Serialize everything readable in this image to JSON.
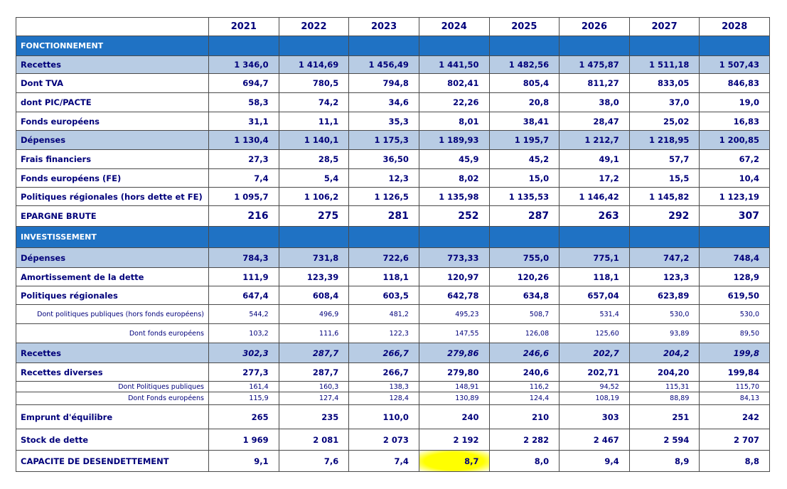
{
  "table": {
    "header": [
      "2021",
      "2022",
      "2023",
      "2024",
      "2025",
      "2026",
      "2027",
      "2028"
    ],
    "rows": [
      {
        "label": "FONCTIONNEMENT"
      },
      {
        "label": "Recettes",
        "values": [
          "1 346,0",
          "1 414,69",
          "1 456,49",
          "1 441,50",
          "1 482,56",
          "1 475,87",
          "1 511,18",
          "1 507,43"
        ]
      },
      {
        "label": "Dont TVA",
        "values": [
          "694,7",
          "780,5",
          "794,8",
          "802,41",
          "805,4",
          "811,27",
          "833,05",
          "846,83"
        ]
      },
      {
        "label": "dont PIC/PACTE",
        "values": [
          "58,3",
          "74,2",
          "34,6",
          "22,26",
          "20,8",
          "38,0",
          "37,0",
          "19,0"
        ]
      },
      {
        "label": "Fonds européens",
        "values": [
          "31,1",
          "11,1",
          "35,3",
          "8,01",
          "38,41",
          "28,47",
          "25,02",
          "16,83"
        ]
      },
      {
        "label": "Dépenses",
        "values": [
          "1 130,4",
          "1 140,1",
          "1 175,3",
          "1 189,93",
          "1 195,7",
          "1 212,7",
          "1 218,95",
          "1 200,85"
        ]
      },
      {
        "label": "Frais financiers",
        "values": [
          "27,3",
          "28,5",
          "36,50",
          "45,9",
          "45,2",
          "49,1",
          "57,7",
          "67,2"
        ]
      },
      {
        "label": "Fonds européens (FE)",
        "values": [
          "7,4",
          "5,4",
          "12,3",
          "8,02",
          "15,0",
          "17,2",
          "15,5",
          "10,4"
        ]
      },
      {
        "label": "Politiques régionales (hors dette et FE)",
        "values": [
          "1 095,7",
          "1 106,2",
          "1 126,5",
          "1 135,98",
          "1 135,53",
          "1 146,42",
          "1 145,82",
          "1 123,19"
        ]
      },
      {
        "label": "EPARGNE BRUTE",
        "values": [
          "216",
          "275",
          "281",
          "252",
          "287",
          "263",
          "292",
          "307"
        ]
      },
      {
        "label": "INVESTISSEMENT"
      },
      {
        "label": "Dépenses",
        "values": [
          "784,3",
          "731,8",
          "722,6",
          "773,33",
          "755,0",
          "775,1",
          "747,2",
          "748,4"
        ]
      },
      {
        "label": "Amortissement de la dette",
        "values": [
          "111,9",
          "123,39",
          "118,1",
          "120,97",
          "120,26",
          "118,1",
          "123,3",
          "128,9"
        ]
      },
      {
        "label": "Politiques régionales",
        "values": [
          "647,4",
          "608,4",
          "603,5",
          "642,78",
          "634,8",
          "657,04",
          "623,89",
          "619,50"
        ]
      },
      {
        "label": "Dont politiques publiques (hors fonds européens)",
        "values": [
          "544,2",
          "496,9",
          "481,2",
          "495,23",
          "508,7",
          "531,4",
          "530,0",
          "530,0"
        ]
      },
      {
        "label": "Dont fonds européens",
        "values": [
          "103,2",
          "111,6",
          "122,3",
          "147,55",
          "126,08",
          "125,60",
          "93,89",
          "89,50"
        ]
      },
      {
        "label": "Recettes",
        "values": [
          "302,3",
          "287,7",
          "266,7",
          "279,86",
          "246,6",
          "202,7",
          "204,2",
          "199,8"
        ]
      },
      {
        "label": "Recettes diverses",
        "values": [
          "277,3",
          "287,7",
          "266,7",
          "279,80",
          "240,6",
          "202,71",
          "204,20",
          "199,84"
        ]
      },
      {
        "label": "Dont Politiques publiques",
        "values": [
          "161,4",
          "160,3",
          "138,3",
          "148,91",
          "116,2",
          "94,52",
          "115,31",
          "115,70"
        ]
      },
      {
        "label": "Dont Fonds européens",
        "values": [
          "115,9",
          "127,4",
          "128,4",
          "130,89",
          "124,4",
          "108,19",
          "88,89",
          "84,13"
        ]
      },
      {
        "label": "Emprunt d'équilibre",
        "values": [
          "265",
          "235",
          "110,0",
          "240",
          "210",
          "303",
          "251",
          "242"
        ]
      },
      {
        "label": "Stock de dette",
        "values": [
          "1 969",
          "2 081",
          "2 073",
          "2 192",
          "2 282",
          "2 467",
          "2 594",
          "2 707"
        ]
      },
      {
        "label": "CAPACITE DE DESENDETTEMENT",
        "values": [
          "9,1",
          "7,6",
          "7,4",
          "8,7",
          "8,0",
          "9,4",
          "8,9",
          "8,8"
        ]
      }
    ]
  }
}
